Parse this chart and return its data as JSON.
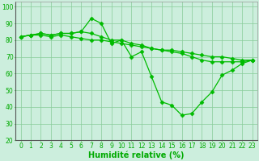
{
  "xlabel": "Humidité relative (%)",
  "xlim": [
    -0.5,
    23.5
  ],
  "ylim": [
    20,
    103
  ],
  "yticks": [
    20,
    30,
    40,
    50,
    60,
    70,
    80,
    90,
    100
  ],
  "xticks": [
    0,
    1,
    2,
    3,
    4,
    5,
    6,
    7,
    8,
    9,
    10,
    11,
    12,
    13,
    14,
    15,
    16,
    17,
    18,
    19,
    20,
    21,
    22,
    23
  ],
  "background_color": "#cceedd",
  "grid_color": "#88cc99",
  "line_color": "#00bb00",
  "series": [
    [
      82,
      83,
      84,
      83,
      84,
      84,
      85,
      93,
      90,
      78,
      80,
      70,
      73,
      58,
      43,
      41,
      35,
      36,
      43,
      49,
      59,
      62,
      66,
      68
    ],
    [
      82,
      83,
      83,
      82,
      83,
      82,
      81,
      80,
      80,
      79,
      78,
      77,
      76,
      75,
      74,
      74,
      73,
      72,
      71,
      70,
      70,
      69,
      68,
      68
    ],
    [
      82,
      83,
      84,
      83,
      84,
      84,
      85,
      84,
      82,
      80,
      80,
      78,
      77,
      75,
      74,
      73,
      72,
      70,
      68,
      67,
      67,
      67,
      67,
      68
    ]
  ],
  "marker": "D",
  "markersize": 2.5,
  "linewidth": 0.9,
  "tick_fontsize": 5.5,
  "xlabel_fontsize": 7.0,
  "tick_color": "#00aa00",
  "xlabel_color": "#00aa00"
}
